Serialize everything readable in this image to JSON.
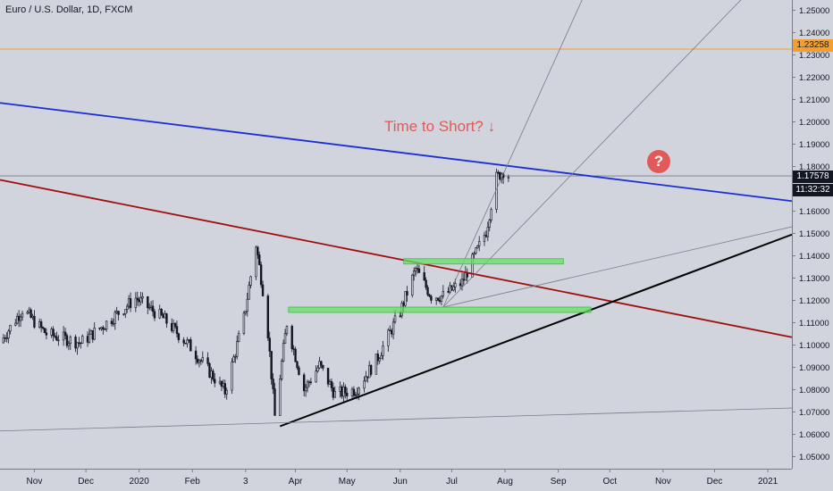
{
  "title": "Euro / U.S. Dollar, 1D, FXCM",
  "annotation": "Time to Short?",
  "question_mark": "?",
  "price_tag": "1.17578",
  "countdown": "11:32:32",
  "level_tag": "1.23258",
  "colors": {
    "background": "#d1d4dc",
    "level_line": "#f59f28",
    "blue_trendline": "#1c2ed6",
    "red_trendline": "#a00d0d",
    "black_trendline": "#000000",
    "zones": "#66e066",
    "candles": "#131722",
    "annotation": "#e05a5a"
  },
  "chart_data": {
    "type": "candlestick",
    "title": "Euro / U.S. Dollar, 1D, FXCM",
    "y_ticks": [
      "1.25000",
      "1.24000",
      "1.23000",
      "1.22000",
      "1.21000",
      "1.20000",
      "1.19000",
      "1.18000",
      "1.17000",
      "1.16000",
      "1.15000",
      "1.14000",
      "1.13000",
      "1.12000",
      "1.11000",
      "1.10000",
      "1.09000",
      "1.08000",
      "1.07000",
      "1.06000",
      "1.05000"
    ],
    "x_ticks": [
      {
        "label": "Nov",
        "date": "2019-11-01"
      },
      {
        "label": "Dec",
        "date": "2019-12-01"
      },
      {
        "label": "2020",
        "date": "2020-01-01"
      },
      {
        "label": "Feb",
        "date": "2020-02-01"
      },
      {
        "label": "3",
        "date": "2020-03-03"
      },
      {
        "label": "Apr",
        "date": "2020-04-01"
      },
      {
        "label": "May",
        "date": "2020-05-01"
      },
      {
        "label": "Jun",
        "date": "2020-06-01"
      },
      {
        "label": "Jul",
        "date": "2020-07-01"
      },
      {
        "label": "Aug",
        "date": "2020-08-01"
      },
      {
        "label": "Sep",
        "date": "2020-09-01"
      },
      {
        "label": "Oct",
        "date": "2020-10-01"
      },
      {
        "label": "Nov",
        "date": "2020-11-01"
      },
      {
        "label": "Dec",
        "date": "2020-12-01"
      },
      {
        "label": "2021",
        "date": "2021-01-01"
      }
    ],
    "ylim": [
      1.0446,
      1.2546
    ],
    "xlim": [
      "2019-10-12",
      "2021-01-15"
    ],
    "price_path": [
      {
        "date": "2019-10-12",
        "price": 1.101
      },
      {
        "date": "2019-10-25",
        "price": 1.116
      },
      {
        "date": "2019-11-08",
        "price": 1.105
      },
      {
        "date": "2019-11-28",
        "price": 1.101
      },
      {
        "date": "2019-12-10",
        "price": 1.108
      },
      {
        "date": "2019-12-30",
        "price": 1.121
      },
      {
        "date": "2020-01-15",
        "price": 1.112
      },
      {
        "date": "2020-01-30",
        "price": 1.1
      },
      {
        "date": "2020-02-20",
        "price": 1.079
      },
      {
        "date": "2020-03-02",
        "price": 1.112
      },
      {
        "date": "2020-03-09",
        "price": 1.145
      },
      {
        "date": "2020-03-15",
        "price": 1.115
      },
      {
        "date": "2020-03-20",
        "price": 1.068
      },
      {
        "date": "2020-03-27",
        "price": 1.11
      },
      {
        "date": "2020-04-06",
        "price": 1.08
      },
      {
        "date": "2020-04-15",
        "price": 1.091
      },
      {
        "date": "2020-04-24",
        "price": 1.078
      },
      {
        "date": "2020-05-06",
        "price": 1.08
      },
      {
        "date": "2020-05-18",
        "price": 1.093
      },
      {
        "date": "2020-06-01",
        "price": 1.115
      },
      {
        "date": "2020-06-10",
        "price": 1.134
      },
      {
        "date": "2020-06-19",
        "price": 1.122
      },
      {
        "date": "2020-06-26",
        "price": 1.122
      },
      {
        "date": "2020-07-07",
        "price": 1.128
      },
      {
        "date": "2020-07-15",
        "price": 1.141
      },
      {
        "date": "2020-07-21",
        "price": 1.151
      },
      {
        "date": "2020-07-27",
        "price": 1.175
      },
      {
        "date": "2020-07-31",
        "price": 1.178
      },
      {
        "date": "2020-08-03",
        "price": 1.176
      }
    ],
    "trendlines": [
      {
        "name": "blue",
        "from": {
          "date": "2019-10-12",
          "price": 1.2085
        },
        "to": {
          "date": "2021-01-15",
          "price": 1.1645
        }
      },
      {
        "name": "red",
        "from": {
          "date": "2019-10-12",
          "price": 1.174
        },
        "to": {
          "date": "2021-01-15",
          "price": 1.1035
        }
      },
      {
        "name": "black",
        "from": {
          "date": "2020-03-23",
          "price": 1.0636
        },
        "to": {
          "date": "2021-01-15",
          "price": 1.1495
        }
      },
      {
        "name": "long-grey",
        "from": {
          "date": "2019-10-12",
          "price": 1.0615
        },
        "to": {
          "date": "2021-01-15",
          "price": 1.0718
        }
      },
      {
        "name": "fan-1",
        "from": {
          "date": "2020-06-26",
          "price": 1.117
        },
        "to": {
          "date": "2020-09-18",
          "price": 1.26
        }
      },
      {
        "name": "fan-2",
        "from": {
          "date": "2020-06-26",
          "price": 1.117
        },
        "to": {
          "date": "2020-12-18",
          "price": 1.256
        }
      },
      {
        "name": "fan-3",
        "from": {
          "date": "2020-06-26",
          "price": 1.117
        },
        "to": {
          "date": "2021-01-15",
          "price": 1.153
        }
      }
    ],
    "horizontal_levels": [
      {
        "price": 1.23258,
        "style": "orange"
      },
      {
        "price": 1.17578,
        "style": "grey"
      }
    ],
    "zones": [
      {
        "from": "2020-06-03",
        "to": "2020-09-04",
        "price": 1.1375
      },
      {
        "from": "2020-03-28",
        "to": "2020-09-20",
        "price": 1.1158
      }
    ]
  }
}
